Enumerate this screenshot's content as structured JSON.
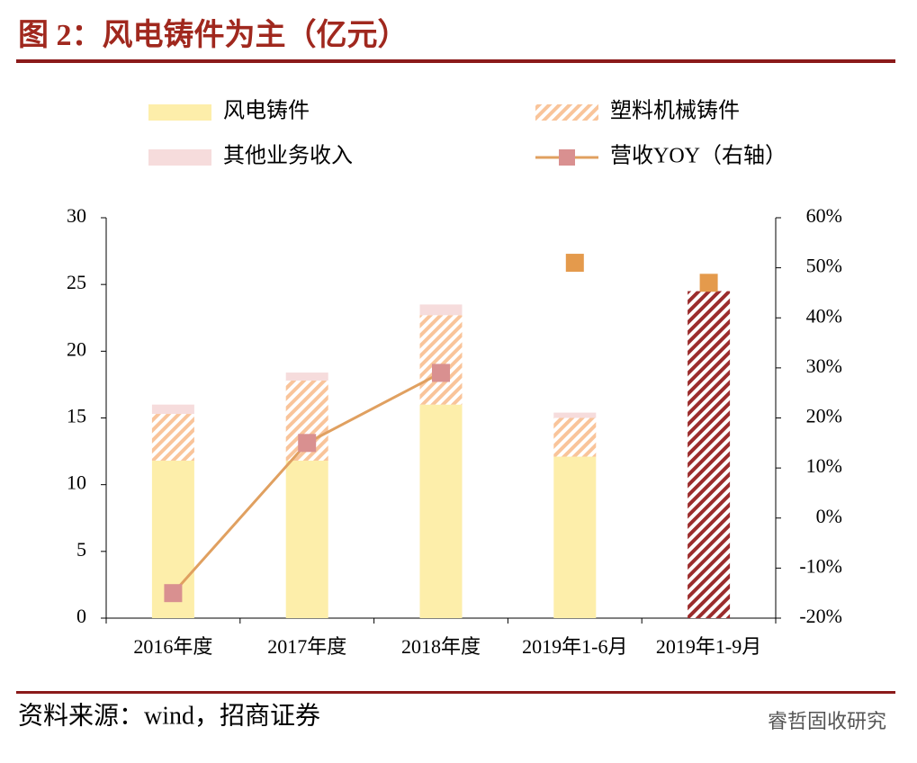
{
  "chart_data": {
    "type": "bar",
    "title": "图 2：风电铸件为主（亿元）",
    "source": "资料来源：wind，招商证券",
    "watermark": "睿哲固收研究",
    "categories": [
      "2016年度",
      "2017年度",
      "2018年度",
      "2019年1-6月",
      "2019年1-9月"
    ],
    "series": [
      {
        "name": "风电铸件",
        "type": "bar",
        "color": "#fdeeaa",
        "values": [
          11.8,
          11.8,
          16.0,
          12.1,
          null
        ]
      },
      {
        "name": "塑料机械铸件",
        "type": "bar",
        "color": "#f9c49a",
        "hatch": true,
        "values": [
          3.5,
          6.0,
          6.7,
          2.9,
          null
        ]
      },
      {
        "name": "其他业务收入",
        "type": "bar",
        "color": "#f6dcdc",
        "values": [
          0.7,
          0.6,
          0.8,
          0.4,
          null
        ]
      },
      {
        "type": "bar",
        "color": "#9b2c2c",
        "hatch": true,
        "values": [
          null,
          null,
          null,
          null,
          24.5
        ]
      },
      {
        "name": "营收YOY（右轴）",
        "type": "line",
        "axis": "y2",
        "color": "#e0a060",
        "marker_color": "#d99090",
        "values": [
          -15,
          15,
          29,
          null,
          null
        ]
      },
      {
        "type": "scatter",
        "axis": "y2",
        "color": "#e49a4c",
        "values": [
          null,
          null,
          null,
          51,
          47
        ]
      }
    ],
    "ylim": [
      0,
      30
    ],
    "yticks": [
      0,
      5,
      10,
      15,
      20,
      25,
      30
    ],
    "y2lim": [
      -20,
      60
    ],
    "y2ticks": [
      {
        "value": -20,
        "label": "-20%"
      },
      {
        "value": -10,
        "label": "-10%"
      },
      {
        "value": 0,
        "label": "0%"
      },
      {
        "value": 10,
        "label": "10%"
      },
      {
        "value": 20,
        "label": "20%"
      },
      {
        "value": 30,
        "label": "30%"
      },
      {
        "value": 40,
        "label": "40%"
      },
      {
        "value": 50,
        "label": "50%"
      },
      {
        "value": 60,
        "label": "60%"
      }
    ]
  }
}
